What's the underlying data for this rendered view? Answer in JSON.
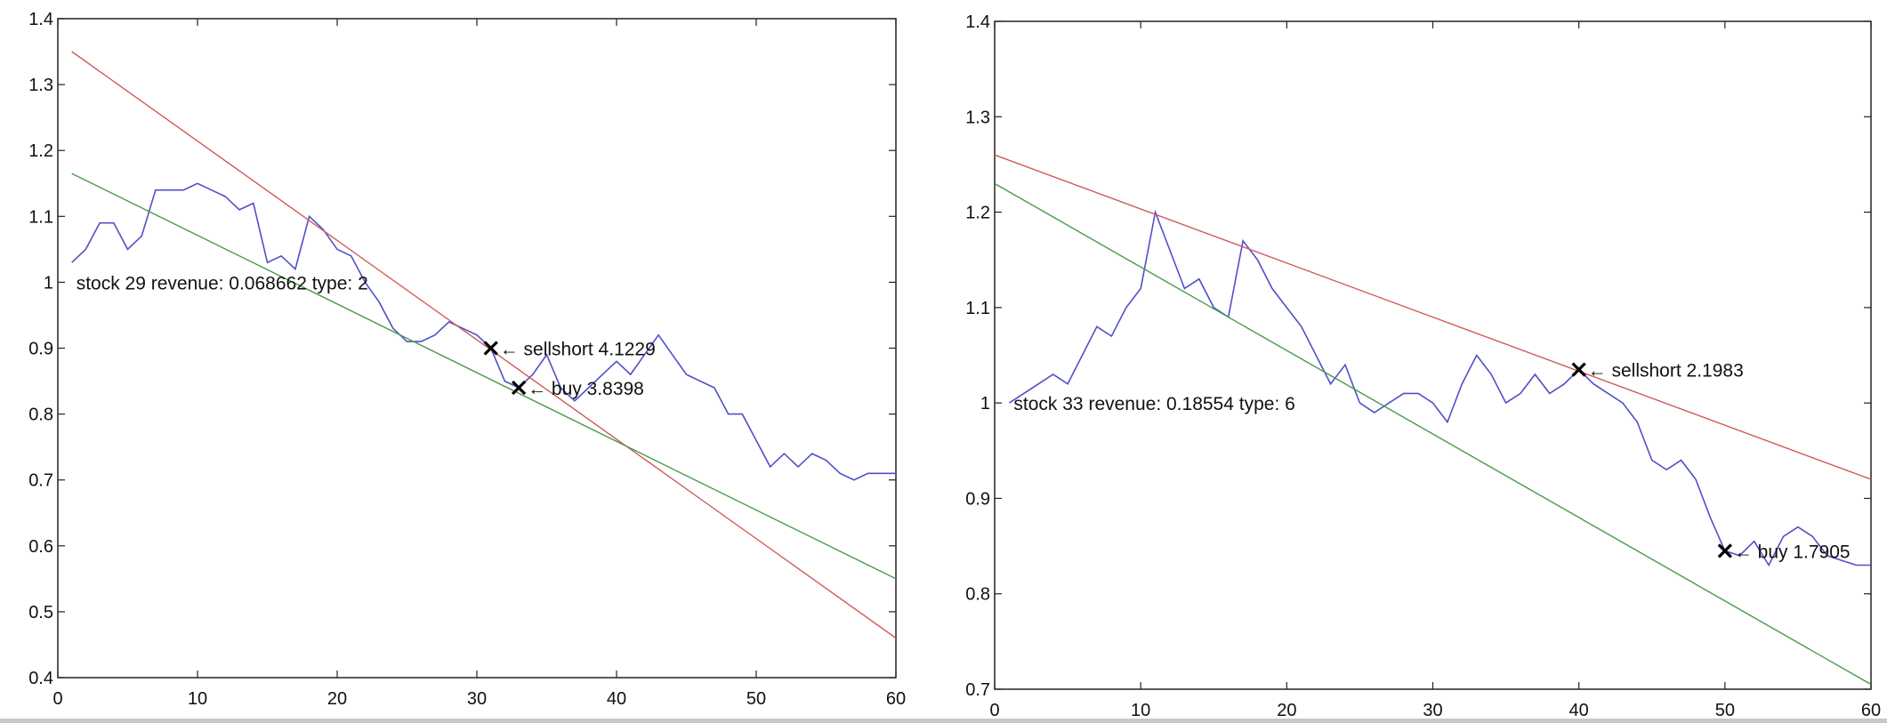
{
  "chart_data": [
    {
      "type": "line",
      "title": "",
      "xlabel": "",
      "ylabel": "",
      "xlim": [
        0,
        60
      ],
      "ylim": [
        0.4,
        1.4
      ],
      "xticks": [
        0,
        10,
        20,
        30,
        40,
        50,
        60
      ],
      "yticks": [
        0.4,
        0.5,
        0.6,
        0.7,
        0.8,
        0.9,
        1,
        1.1,
        1.2,
        1.3,
        1.4
      ],
      "grid": false,
      "colors": {
        "price": "#5050c8",
        "upper": "#d05a5a",
        "lower": "#4a9a4a",
        "marker": "#000000"
      },
      "series": [
        {
          "key": "price",
          "values": [
            [
              1,
              1.03
            ],
            [
              2,
              1.05
            ],
            [
              3,
              1.09
            ],
            [
              4,
              1.09
            ],
            [
              5,
              1.05
            ],
            [
              6,
              1.07
            ],
            [
              7,
              1.14
            ],
            [
              8,
              1.14
            ],
            [
              9,
              1.14
            ],
            [
              10,
              1.15
            ],
            [
              11,
              1.14
            ],
            [
              12,
              1.13
            ],
            [
              13,
              1.11
            ],
            [
              14,
              1.12
            ],
            [
              15,
              1.03
            ],
            [
              16,
              1.04
            ],
            [
              17,
              1.02
            ],
            [
              18,
              1.1
            ],
            [
              19,
              1.08
            ],
            [
              20,
              1.05
            ],
            [
              21,
              1.04
            ],
            [
              22,
              1.0
            ],
            [
              23,
              0.97
            ],
            [
              24,
              0.93
            ],
            [
              25,
              0.91
            ],
            [
              26,
              0.91
            ],
            [
              27,
              0.92
            ],
            [
              28,
              0.94
            ],
            [
              29,
              0.93
            ],
            [
              30,
              0.92
            ],
            [
              31,
              0.9
            ],
            [
              32,
              0.85
            ],
            [
              33,
              0.84
            ],
            [
              34,
              0.86
            ],
            [
              35,
              0.89
            ],
            [
              36,
              0.84
            ],
            [
              37,
              0.82
            ],
            [
              38,
              0.84
            ],
            [
              39,
              0.86
            ],
            [
              40,
              0.88
            ],
            [
              41,
              0.86
            ],
            [
              42,
              0.89
            ],
            [
              43,
              0.92
            ],
            [
              44,
              0.89
            ],
            [
              45,
              0.86
            ],
            [
              46,
              0.85
            ],
            [
              47,
              0.84
            ],
            [
              48,
              0.8
            ],
            [
              49,
              0.8
            ],
            [
              50,
              0.76
            ],
            [
              51,
              0.72
            ],
            [
              52,
              0.74
            ],
            [
              53,
              0.72
            ],
            [
              54,
              0.74
            ],
            [
              55,
              0.73
            ],
            [
              56,
              0.71
            ],
            [
              57,
              0.7
            ],
            [
              58,
              0.71
            ],
            [
              59,
              0.71
            ],
            [
              60,
              0.71
            ]
          ]
        },
        {
          "key": "upper",
          "values": [
            [
              1,
              1.35
            ],
            [
              60,
              0.46
            ]
          ]
        },
        {
          "key": "lower",
          "values": [
            [
              1,
              1.165
            ],
            [
              60,
              0.55
            ]
          ]
        }
      ],
      "markers": [
        {
          "x": 31,
          "y": 0.9,
          "label": "← sellshort 4.1229"
        },
        {
          "x": 33,
          "y": 0.84,
          "label": "← buy 3.8398"
        }
      ],
      "annotation": {
        "x": 1,
        "y": 1.0,
        "text": "stock 29 revenue: 0.068662 type: 2"
      }
    },
    {
      "type": "line",
      "title": "",
      "xlabel": "",
      "ylabel": "",
      "xlim": [
        0,
        60
      ],
      "ylim": [
        0.7,
        1.4
      ],
      "xticks": [
        0,
        10,
        20,
        30,
        40,
        50,
        60
      ],
      "yticks": [
        0.7,
        0.8,
        0.9,
        1,
        1.1,
        1.2,
        1.3,
        1.4
      ],
      "grid": false,
      "colors": {
        "price": "#5050c8",
        "upper": "#d05a5a",
        "lower": "#4a9a4a",
        "marker": "#000000"
      },
      "series": [
        {
          "key": "price",
          "values": [
            [
              1,
              1.0
            ],
            [
              2,
              1.01
            ],
            [
              3,
              1.02
            ],
            [
              4,
              1.03
            ],
            [
              5,
              1.02
            ],
            [
              6,
              1.05
            ],
            [
              7,
              1.08
            ],
            [
              8,
              1.07
            ],
            [
              9,
              1.1
            ],
            [
              10,
              1.12
            ],
            [
              11,
              1.2
            ],
            [
              12,
              1.16
            ],
            [
              13,
              1.12
            ],
            [
              14,
              1.13
            ],
            [
              15,
              1.1
            ],
            [
              16,
              1.09
            ],
            [
              17,
              1.17
            ],
            [
              18,
              1.15
            ],
            [
              19,
              1.12
            ],
            [
              20,
              1.1
            ],
            [
              21,
              1.08
            ],
            [
              22,
              1.05
            ],
            [
              23,
              1.02
            ],
            [
              24,
              1.04
            ],
            [
              25,
              1.0
            ],
            [
              26,
              0.99
            ],
            [
              27,
              1.0
            ],
            [
              28,
              1.01
            ],
            [
              29,
              1.01
            ],
            [
              30,
              1.0
            ],
            [
              31,
              0.98
            ],
            [
              32,
              1.02
            ],
            [
              33,
              1.05
            ],
            [
              34,
              1.03
            ],
            [
              35,
              1.0
            ],
            [
              36,
              1.01
            ],
            [
              37,
              1.03
            ],
            [
              38,
              1.01
            ],
            [
              39,
              1.02
            ],
            [
              40,
              1.035
            ],
            [
              41,
              1.02
            ],
            [
              42,
              1.01
            ],
            [
              43,
              1.0
            ],
            [
              44,
              0.98
            ],
            [
              45,
              0.94
            ],
            [
              46,
              0.93
            ],
            [
              47,
              0.94
            ],
            [
              48,
              0.92
            ],
            [
              49,
              0.88
            ],
            [
              50,
              0.845
            ],
            [
              51,
              0.84
            ],
            [
              52,
              0.855
            ],
            [
              53,
              0.83
            ],
            [
              54,
              0.86
            ],
            [
              55,
              0.87
            ],
            [
              56,
              0.86
            ],
            [
              57,
              0.84
            ],
            [
              58,
              0.835
            ],
            [
              59,
              0.83
            ],
            [
              60,
              0.83
            ]
          ]
        },
        {
          "key": "upper",
          "values": [
            [
              0,
              1.26
            ],
            [
              60,
              0.92
            ]
          ]
        },
        {
          "key": "lower",
          "values": [
            [
              0,
              1.23
            ],
            [
              60,
              0.705
            ]
          ]
        }
      ],
      "markers": [
        {
          "x": 40,
          "y": 1.035,
          "label": "← sellshort 2.1983"
        },
        {
          "x": 50,
          "y": 0.845,
          "label": "← buy 1.7905"
        }
      ],
      "annotation": {
        "x": 1,
        "y": 1.0,
        "text": "stock 33 revenue: 0.18554 type: 6"
      }
    }
  ]
}
